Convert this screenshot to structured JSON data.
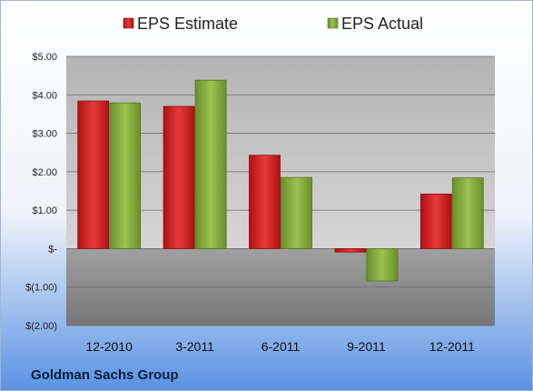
{
  "chart_data": {
    "type": "bar",
    "categories": [
      "12-2010",
      "3-2011",
      "6-2011",
      "9-2011",
      "12-2011"
    ],
    "series": [
      {
        "name": "EPS Estimate",
        "values": [
          3.84,
          3.7,
          2.43,
          -0.09,
          1.42
        ],
        "color": "#d41f1f"
      },
      {
        "name": "EPS Actual",
        "values": [
          3.79,
          4.38,
          1.85,
          -0.84,
          1.84
        ],
        "color": "#86ac3c"
      }
    ],
    "ylim": [
      -2,
      5
    ],
    "y_ticks": [
      5,
      4,
      3,
      2,
      1,
      0,
      -1,
      -2
    ],
    "y_tick_labels": [
      "$5.00",
      "$4.00",
      "$3.00",
      "$2.00",
      "$1.00",
      "$-",
      "$(1.00)",
      "$(2.00)"
    ],
    "grid": true,
    "legend_position": "top",
    "title": "",
    "xlabel": "",
    "ylabel": ""
  },
  "company_label": "Goldman Sachs Group",
  "colors": {
    "background_top": "#ffffff",
    "background_bottom": "#5f95e3",
    "plot_positive_bg": "#c9c9c9",
    "plot_negative_bg": "#8a8a8a"
  }
}
